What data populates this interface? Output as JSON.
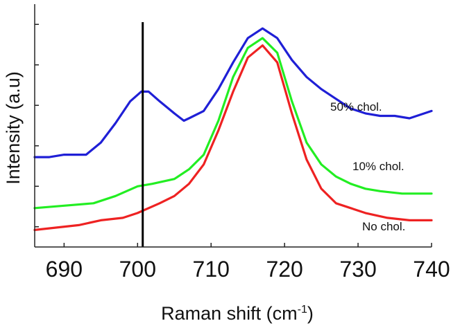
{
  "chart_data": {
    "type": "line",
    "title": "",
    "xlabel": "Raman shift (cm",
    "xlabel_superscript": "-1",
    "xlabel_suffix": ")",
    "ylabel": "Intensity (a.u)",
    "xlim": [
      686,
      740
    ],
    "ylim": [
      0,
      1
    ],
    "x_ticks": [
      690,
      700,
      710,
      720,
      730,
      740
    ],
    "y_tick_count": 6,
    "y_tick_labels_shown": false,
    "grid": false,
    "marker_line": {
      "x": 700.7
    },
    "series": [
      {
        "name": "50% chol.",
        "color": "#1f1fd6",
        "points": [
          [
            686,
            0.37
          ],
          [
            688,
            0.37
          ],
          [
            690,
            0.38
          ],
          [
            693,
            0.38
          ],
          [
            695,
            0.43
          ],
          [
            697,
            0.51
          ],
          [
            699,
            0.6
          ],
          [
            700.5,
            0.64
          ],
          [
            701.5,
            0.64
          ],
          [
            703,
            0.6
          ],
          [
            705,
            0.55
          ],
          [
            706.3,
            0.52
          ],
          [
            707,
            0.53
          ],
          [
            709,
            0.56
          ],
          [
            711,
            0.65
          ],
          [
            713,
            0.76
          ],
          [
            715,
            0.86
          ],
          [
            717,
            0.9
          ],
          [
            719,
            0.86
          ],
          [
            721,
            0.77
          ],
          [
            723,
            0.7
          ],
          [
            725,
            0.65
          ],
          [
            727,
            0.61
          ],
          [
            729,
            0.57
          ],
          [
            731,
            0.55
          ],
          [
            733,
            0.54
          ],
          [
            735,
            0.54
          ],
          [
            737,
            0.53
          ],
          [
            740,
            0.56
          ]
        ]
      },
      {
        "name": "10% chol.",
        "color": "#22ee22",
        "points": [
          [
            686,
            0.16
          ],
          [
            690,
            0.17
          ],
          [
            694,
            0.18
          ],
          [
            697,
            0.21
          ],
          [
            700,
            0.25
          ],
          [
            702,
            0.26
          ],
          [
            705,
            0.28
          ],
          [
            707,
            0.32
          ],
          [
            709,
            0.38
          ],
          [
            711,
            0.52
          ],
          [
            713,
            0.7
          ],
          [
            715,
            0.82
          ],
          [
            717,
            0.86
          ],
          [
            719,
            0.8
          ],
          [
            721,
            0.6
          ],
          [
            723,
            0.43
          ],
          [
            725,
            0.34
          ],
          [
            727,
            0.29
          ],
          [
            729,
            0.26
          ],
          [
            731,
            0.24
          ],
          [
            733,
            0.23
          ],
          [
            736,
            0.22
          ],
          [
            740,
            0.22
          ]
        ]
      },
      {
        "name": "No chol.",
        "color": "#ee2222",
        "points": [
          [
            686,
            0.07
          ],
          [
            689,
            0.08
          ],
          [
            692,
            0.09
          ],
          [
            695,
            0.11
          ],
          [
            698,
            0.12
          ],
          [
            700,
            0.14
          ],
          [
            703,
            0.18
          ],
          [
            705,
            0.21
          ],
          [
            707,
            0.26
          ],
          [
            709,
            0.34
          ],
          [
            711,
            0.48
          ],
          [
            713,
            0.64
          ],
          [
            715,
            0.78
          ],
          [
            717,
            0.83
          ],
          [
            719,
            0.76
          ],
          [
            721,
            0.55
          ],
          [
            723,
            0.36
          ],
          [
            725,
            0.24
          ],
          [
            727,
            0.18
          ],
          [
            729,
            0.16
          ],
          [
            731,
            0.14
          ],
          [
            734,
            0.12
          ],
          [
            737,
            0.11
          ],
          [
            740,
            0.11
          ]
        ]
      }
    ]
  }
}
